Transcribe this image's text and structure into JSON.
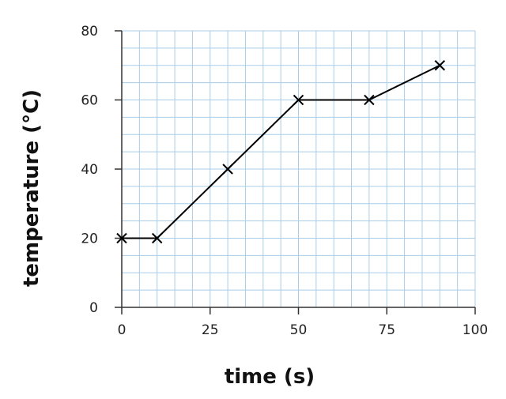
{
  "chart_data": {
    "type": "line",
    "title": "",
    "xlabel": "time (s)",
    "ylabel": "temperature (°C)",
    "xlim": [
      0,
      100
    ],
    "ylim": [
      0,
      80
    ],
    "x_ticks": [
      0,
      25,
      50,
      75,
      100
    ],
    "y_ticks": [
      0,
      20,
      40,
      60,
      80
    ],
    "x_tick_labels": [
      "0",
      "25",
      "50",
      "75",
      "100"
    ],
    "y_tick_labels": [
      "0",
      "20",
      "40",
      "60",
      "80"
    ],
    "grid": true,
    "grid_minor_x_step": 5,
    "grid_minor_y_step": 5,
    "legend": "none",
    "marker": "x",
    "colors": {
      "grid": "#a9cde8",
      "axis": "#333333",
      "line": "#000000"
    },
    "series": [
      {
        "x": [
          0,
          10,
          30,
          50,
          70,
          90
        ],
        "y": [
          20,
          20,
          40,
          60,
          60,
          70
        ]
      }
    ]
  }
}
